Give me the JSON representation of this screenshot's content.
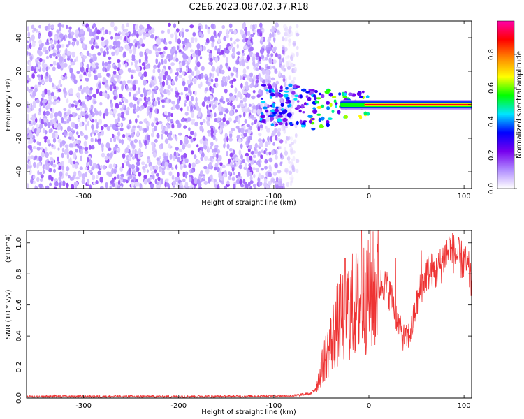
{
  "title": "C2E6.2023.087.02.37.R18",
  "chart_data": [
    {
      "type": "heatmap",
      "xlabel": "Height of straight line (km)",
      "ylabel": "Frequency (Hz)",
      "xlim": [
        -360,
        108
      ],
      "ylim": [
        -50,
        50
      ],
      "x_ticks": [
        -300,
        -200,
        -100,
        0,
        100
      ],
      "y_ticks": [
        -40,
        -20,
        0,
        20,
        40
      ],
      "colorbar": {
        "label": "Normalized spectral amplitude",
        "range": [
          0,
          1
        ],
        "ticks": [
          "0.0",
          "0.2",
          "0.4",
          "0.6",
          "0.8"
        ],
        "colormap": [
          "#ffffff",
          "#b08cff",
          "#7700ee",
          "#0000ff",
          "#00e5ff",
          "#00ff00",
          "#ffff00",
          "#ff8800",
          "#ff0000",
          "#ff00aa"
        ]
      },
      "description_series": [
        {
          "name": "noise",
          "x_range": [
            -360,
            -75
          ],
          "freq_range": [
            -50,
            48
          ]
        },
        {
          "name": "signal",
          "x_range": [
            -140,
            108
          ],
          "freq_center": 0
        }
      ]
    },
    {
      "type": "line",
      "xlabel": "Height of straight line (km)",
      "ylabel": "SNR (10 * v/v)",
      "y_multiplier": "(x10^4)",
      "xlim": [
        -360,
        108
      ],
      "ylim": [
        0,
        1.08
      ],
      "x_ticks": [
        -300,
        -200,
        -100,
        0,
        100
      ],
      "y_ticks": [
        "0.0",
        "0.2",
        "0.4",
        "0.6",
        "0.8",
        "1.0"
      ],
      "color": "#ee3333",
      "profile": [
        [
          -360,
          0.01
        ],
        [
          -250,
          0.01
        ],
        [
          -150,
          0.01
        ],
        [
          -80,
          0.015
        ],
        [
          -60,
          0.03
        ],
        [
          -55,
          0.08
        ],
        [
          -50,
          0.18
        ],
        [
          -45,
          0.28
        ],
        [
          -40,
          0.35
        ],
        [
          -35,
          0.45
        ],
        [
          -30,
          0.5
        ],
        [
          -25,
          0.55
        ],
        [
          -20,
          0.58
        ],
        [
          -15,
          0.6
        ],
        [
          -10,
          0.62
        ],
        [
          -5,
          0.65
        ],
        [
          0,
          0.7
        ],
        [
          5,
          0.68
        ],
        [
          10,
          0.72
        ],
        [
          15,
          0.74
        ],
        [
          20,
          0.7
        ],
        [
          25,
          0.62
        ],
        [
          30,
          0.5
        ],
        [
          35,
          0.4
        ],
        [
          40,
          0.38
        ],
        [
          45,
          0.45
        ],
        [
          50,
          0.6
        ],
        [
          55,
          0.72
        ],
        [
          60,
          0.8
        ],
        [
          65,
          0.82
        ],
        [
          70,
          0.8
        ],
        [
          75,
          0.85
        ],
        [
          80,
          0.92
        ],
        [
          85,
          0.96
        ],
        [
          90,
          0.93
        ],
        [
          95,
          0.9
        ],
        [
          100,
          0.88
        ],
        [
          105,
          0.82
        ],
        [
          108,
          0.72
        ]
      ],
      "peaks": [
        [
          -25,
          0.9
        ],
        [
          -8,
          1.08
        ],
        [
          -2,
          0.95
        ],
        [
          28,
          0.9
        ],
        [
          55,
          0.95
        ],
        [
          85,
          1.02
        ]
      ]
    }
  ]
}
